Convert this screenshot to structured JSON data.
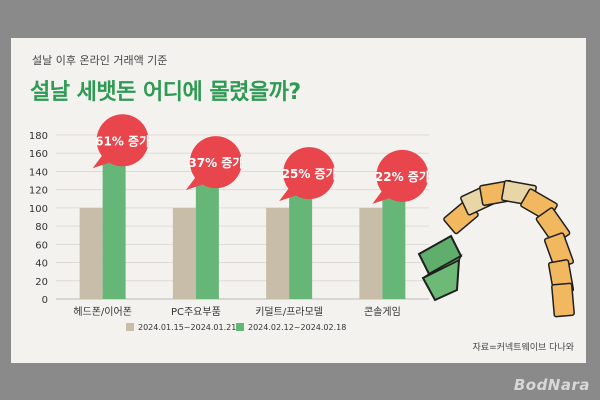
{
  "subtitle": "설날 이후 온라인 거래액 기준",
  "title": "설날 세뱃돈 어디에 몰렸을까?",
  "source": "자료=커넥트웨이브 다나와",
  "watermark": "BodNara",
  "colors": {
    "series1": "#c7bda8",
    "series2": "#66b678",
    "callout": "#e8464c",
    "title": "#2f9a54"
  },
  "chart_data": {
    "type": "bar",
    "categories": [
      "헤드폰/이어폰",
      "PC주요부품",
      "키덜트/프라모델",
      "콘솔게임"
    ],
    "series": [
      {
        "name": "2024.01.15~2024.01.21",
        "values": [
          100,
          100,
          100,
          100
        ]
      },
      {
        "name": "2024.02.12~2024.02.18",
        "values": [
          161,
          137,
          125,
          122
        ]
      }
    ],
    "annotations": [
      "61% 증가",
      "37% 증가",
      "25% 증가",
      "22% 증가"
    ],
    "yticks": [
      0,
      20,
      40,
      60,
      80,
      100,
      120,
      140,
      160,
      180
    ],
    "ylim": [
      0,
      180
    ],
    "grid": true,
    "legend": "bottom"
  }
}
